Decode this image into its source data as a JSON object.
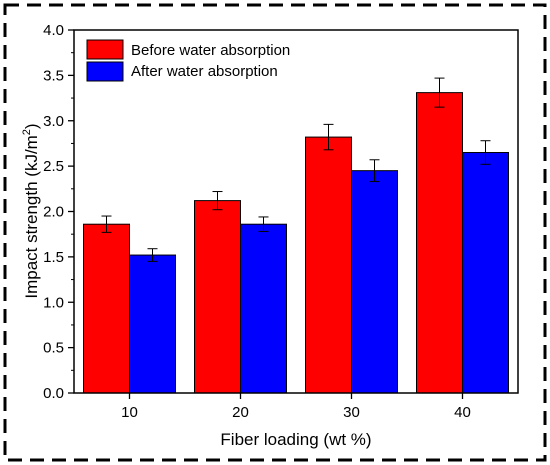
{
  "chart_data": {
    "type": "bar",
    "xlabel": "Fiber loading (wt %)",
    "ylabel_main": "Impact strength (kJ/m",
    "ylabel_sup": "2",
    "ylabel_tail": ")",
    "categories": [
      "10",
      "20",
      "30",
      "40"
    ],
    "ylim": [
      0.0,
      4.0
    ],
    "yticks": [
      "0.0",
      "0.5",
      "1.0",
      "1.5",
      "2.0",
      "2.5",
      "3.0",
      "3.5",
      "4.0"
    ],
    "legend_position": "top-left",
    "series": [
      {
        "name": "Before water absorption",
        "color": "#ff0000",
        "values": [
          1.86,
          2.12,
          2.82,
          3.31
        ],
        "errors": [
          0.09,
          0.1,
          0.14,
          0.16
        ]
      },
      {
        "name": "After water absorption",
        "color": "#0000ff",
        "values": [
          1.52,
          1.86,
          2.45,
          2.65
        ],
        "errors": [
          0.07,
          0.08,
          0.12,
          0.13
        ]
      }
    ]
  }
}
